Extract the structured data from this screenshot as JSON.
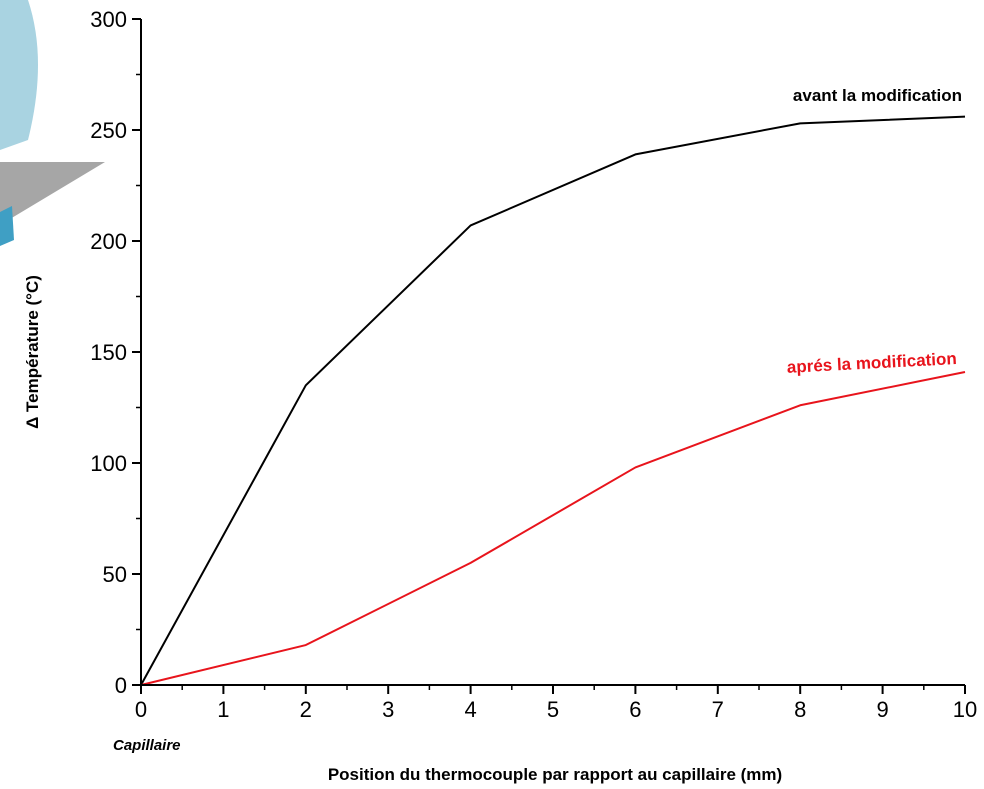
{
  "chart_data": {
    "type": "line",
    "xlabel": "Position du thermocouple par rapport au capillaire (mm)",
    "ylabel": "Δ Température (°C)",
    "xlim": [
      0,
      10
    ],
    "ylim": [
      0,
      300
    ],
    "x_ticks": [
      0,
      1,
      2,
      3,
      4,
      5,
      6,
      7,
      8,
      9,
      10
    ],
    "y_ticks": [
      0,
      50,
      100,
      150,
      200,
      250,
      300
    ],
    "grid": false,
    "origin_annotation": "Capillaire",
    "series": [
      {
        "name": "avant la modification",
        "color": "#000000",
        "x": [
          0,
          2,
          4,
          6,
          8,
          10
        ],
        "y": [
          0,
          135,
          207,
          239,
          253,
          256
        ]
      },
      {
        "name": "aprés la modification",
        "color": "#e8141c",
        "x": [
          0,
          2,
          4,
          6,
          8,
          10
        ],
        "y": [
          0,
          18,
          55,
          98,
          126,
          141
        ]
      }
    ]
  }
}
